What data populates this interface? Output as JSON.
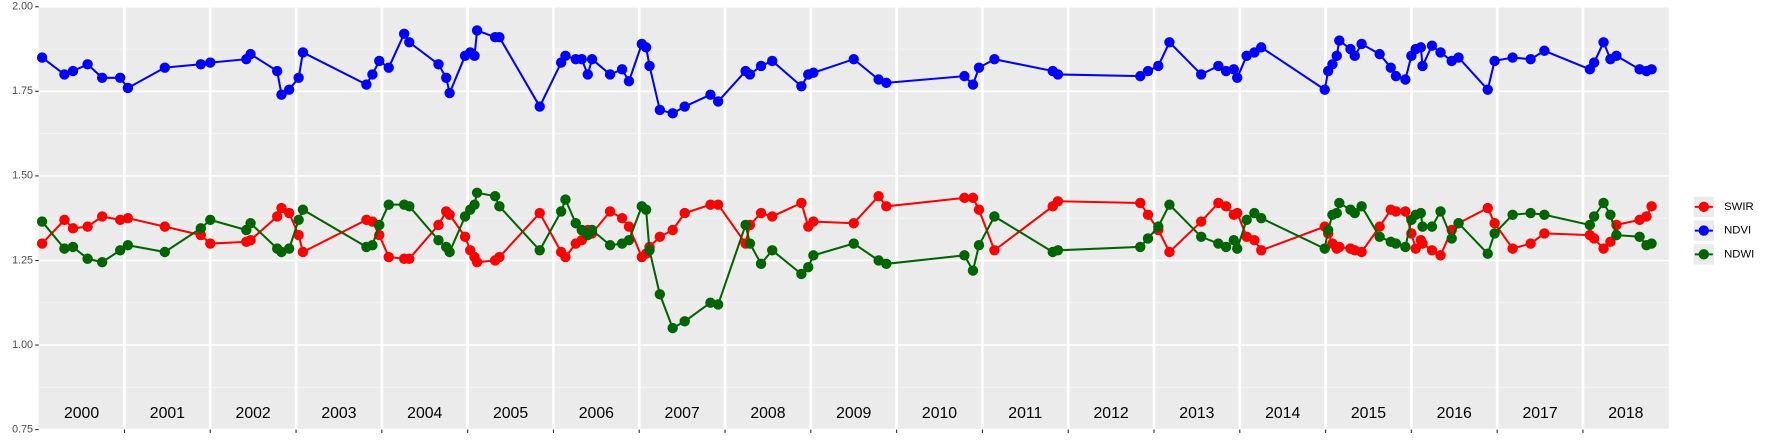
{
  "chart_data": {
    "type": "line",
    "xlim": [
      2000,
      2019
    ],
    "xticks": [
      2001,
      2002,
      2003,
      2004,
      2005,
      2006,
      2007,
      2008,
      2009,
      2010,
      2011,
      2012,
      2013,
      2014,
      2015,
      2016,
      2017,
      2018
    ],
    "categories": [
      "2000",
      "2001",
      "2002",
      "2003",
      "2004",
      "2005",
      "2006",
      "2007",
      "2008",
      "2009",
      "2010",
      "2011",
      "2012",
      "2013",
      "2014",
      "2015",
      "2016",
      "2017",
      "2018"
    ],
    "ylim": [
      0.75,
      2.0
    ],
    "yticks": [
      {
        "value": 0.75,
        "label": "0.75"
      },
      {
        "value": 1.0,
        "label": "1.00"
      },
      {
        "value": 1.25,
        "label": "1.25"
      },
      {
        "value": 1.5,
        "label": "1.50"
      },
      {
        "value": 1.75,
        "label": "1.75"
      },
      {
        "value": 2.0,
        "label": "2.00"
      }
    ],
    "grid": true,
    "legend": "right",
    "x": [
      2000.04,
      2000.3,
      2000.4,
      2000.57,
      2000.74,
      2000.95,
      2001.04,
      2001.47,
      2001.89,
      2002.0,
      2002.42,
      2002.47,
      2002.78,
      2002.83,
      2002.92,
      2003.03,
      2003.08,
      2003.82,
      2003.89,
      2003.97,
      2004.08,
      2004.26,
      2004.32,
      2004.66,
      2004.75,
      2004.79,
      2004.97,
      2005.03,
      2005.08,
      2005.11,
      2005.32,
      2005.37,
      2005.84,
      2006.09,
      2006.14,
      2006.26,
      2006.33,
      2006.4,
      2006.45,
      2006.66,
      2006.8,
      2006.88,
      2007.03,
      2007.08,
      2007.12,
      2007.24,
      2007.39,
      2007.53,
      2007.83,
      2007.92,
      2008.24,
      2008.29,
      2008.42,
      2008.55,
      2008.89,
      2008.97,
      2009.03,
      2009.5,
      2009.79,
      2009.88,
      2010.79,
      2010.89,
      2010.96,
      2011.14,
      2011.82,
      2011.88,
      2012.84,
      2012.93,
      2013.05,
      2013.18,
      2013.55,
      2013.75,
      2013.84,
      2013.93,
      2013.97,
      2014.08,
      2014.17,
      2014.25,
      2014.99,
      2015.03,
      2015.08,
      2015.13,
      2015.16,
      2015.29,
      2015.34,
      2015.42,
      2015.63,
      2015.76,
      2015.82,
      2015.93,
      2016.0,
      2016.05,
      2016.11,
      2016.13,
      2016.24,
      2016.34,
      2016.47,
      2016.55,
      2016.89,
      2016.97,
      2017.18,
      2017.39,
      2017.55,
      2018.08,
      2018.13,
      2018.24,
      2018.32,
      2018.39,
      2018.66,
      2018.74,
      2018.8
    ],
    "series": [
      {
        "name": "SWIR",
        "color": "#ff0000",
        "values": [
          1.3,
          1.37,
          1.345,
          1.35,
          1.38,
          1.37,
          1.375,
          1.35,
          1.325,
          1.3,
          1.305,
          1.31,
          1.38,
          1.405,
          1.39,
          1.325,
          1.275,
          1.37,
          1.365,
          1.325,
          1.26,
          1.255,
          1.255,
          1.355,
          1.395,
          1.385,
          1.32,
          1.28,
          1.26,
          1.245,
          1.25,
          1.26,
          1.39,
          1.275,
          1.26,
          1.3,
          1.31,
          1.34,
          1.33,
          1.395,
          1.375,
          1.35,
          1.26,
          1.27,
          1.29,
          1.32,
          1.34,
          1.39,
          1.415,
          1.415,
          1.3,
          1.355,
          1.39,
          1.38,
          1.42,
          1.35,
          1.365,
          1.36,
          1.44,
          1.41,
          1.435,
          1.435,
          1.4,
          1.28,
          1.41,
          1.425,
          1.42,
          1.385,
          1.34,
          1.275,
          1.365,
          1.42,
          1.41,
          1.385,
          1.39,
          1.32,
          1.31,
          1.28,
          1.35,
          1.33,
          1.3,
          1.285,
          1.29,
          1.285,
          1.28,
          1.275,
          1.35,
          1.4,
          1.395,
          1.395,
          1.33,
          1.285,
          1.31,
          1.3,
          1.28,
          1.265,
          1.34,
          1.36,
          1.405,
          1.36,
          1.285,
          1.3,
          1.33,
          1.325,
          1.315,
          1.285,
          1.305,
          1.355,
          1.37,
          1.38,
          1.41
        ]
      },
      {
        "name": "NDVI",
        "color": "#0000ff",
        "values": [
          1.85,
          1.8,
          1.81,
          1.83,
          1.79,
          1.79,
          1.76,
          1.82,
          1.83,
          1.835,
          1.845,
          1.86,
          1.81,
          1.74,
          1.755,
          1.79,
          1.865,
          1.77,
          1.8,
          1.84,
          1.82,
          1.92,
          1.895,
          1.83,
          1.79,
          1.745,
          1.855,
          1.865,
          1.855,
          1.93,
          1.91,
          1.91,
          1.705,
          1.835,
          1.855,
          1.845,
          1.845,
          1.8,
          1.845,
          1.8,
          1.815,
          1.78,
          1.89,
          1.88,
          1.825,
          1.695,
          1.685,
          1.705,
          1.74,
          1.72,
          1.81,
          1.8,
          1.825,
          1.84,
          1.765,
          1.8,
          1.805,
          1.845,
          1.785,
          1.775,
          1.795,
          1.77,
          1.82,
          1.845,
          1.81,
          1.8,
          1.795,
          1.81,
          1.825,
          1.895,
          1.8,
          1.825,
          1.81,
          1.815,
          1.79,
          1.855,
          1.865,
          1.88,
          1.755,
          1.81,
          1.83,
          1.855,
          1.9,
          1.875,
          1.855,
          1.89,
          1.86,
          1.82,
          1.795,
          1.785,
          1.855,
          1.875,
          1.88,
          1.825,
          1.885,
          1.865,
          1.84,
          1.85,
          1.755,
          1.84,
          1.85,
          1.845,
          1.87,
          1.815,
          1.835,
          1.895,
          1.845,
          1.855,
          1.815,
          1.81,
          1.815
        ]
      },
      {
        "name": "NDWI",
        "color": "#006400",
        "values": [
          1.365,
          1.285,
          1.29,
          1.255,
          1.245,
          1.28,
          1.295,
          1.275,
          1.345,
          1.37,
          1.34,
          1.36,
          1.285,
          1.275,
          1.285,
          1.37,
          1.4,
          1.29,
          1.295,
          1.355,
          1.415,
          1.415,
          1.41,
          1.31,
          1.29,
          1.275,
          1.38,
          1.4,
          1.415,
          1.45,
          1.44,
          1.41,
          1.28,
          1.395,
          1.43,
          1.36,
          1.34,
          1.325,
          1.34,
          1.295,
          1.3,
          1.31,
          1.41,
          1.4,
          1.28,
          1.15,
          1.05,
          1.07,
          1.125,
          1.12,
          1.355,
          1.3,
          1.24,
          1.28,
          1.21,
          1.23,
          1.265,
          1.3,
          1.25,
          1.24,
          1.265,
          1.22,
          1.295,
          1.38,
          1.275,
          1.28,
          1.29,
          1.315,
          1.35,
          1.415,
          1.32,
          1.3,
          1.29,
          1.31,
          1.285,
          1.37,
          1.39,
          1.375,
          1.285,
          1.34,
          1.385,
          1.39,
          1.42,
          1.4,
          1.39,
          1.41,
          1.32,
          1.305,
          1.3,
          1.29,
          1.37,
          1.385,
          1.39,
          1.35,
          1.35,
          1.395,
          1.315,
          1.36,
          1.27,
          1.33,
          1.385,
          1.39,
          1.385,
          1.355,
          1.38,
          1.42,
          1.385,
          1.325,
          1.32,
          1.295,
          1.3
        ]
      }
    ]
  }
}
